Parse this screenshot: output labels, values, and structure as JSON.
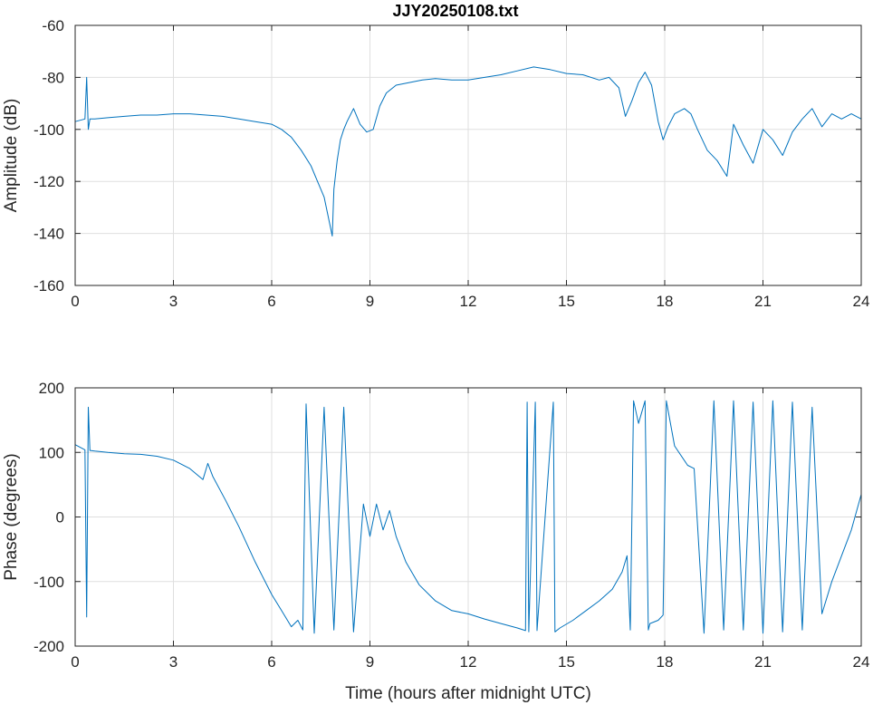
{
  "title": "JJY20250108.txt",
  "colors": {
    "series": "#0072bd",
    "axis": "#262626",
    "grid": "#dfdfdf"
  },
  "chart_data": [
    {
      "type": "line",
      "title": "JJY20250108.txt",
      "xlabel": "",
      "ylabel": "Amplitude (dB)",
      "xlim": [
        0,
        24
      ],
      "ylim": [
        -160,
        -60
      ],
      "xticks": [
        0,
        3,
        6,
        9,
        12,
        15,
        18,
        21,
        24
      ],
      "yticks": [
        -160,
        -140,
        -120,
        -100,
        -80,
        -60
      ],
      "xtick_labels": [
        "0",
        "3",
        "6",
        "9",
        "12",
        "15",
        "18",
        "21",
        "24"
      ],
      "ytick_labels": [
        "-160",
        "-140",
        "-120",
        "-100",
        "-80",
        "-60"
      ],
      "grid": true,
      "series": [
        {
          "x": [
            0,
            0.3,
            0.35,
            0.4,
            0.45,
            0.6,
            1,
            1.5,
            2,
            2.5,
            3,
            3.5,
            4,
            4.5,
            5,
            5.5,
            6,
            6.3,
            6.6,
            6.9,
            7.2,
            7.4,
            7.6,
            7.7,
            7.8,
            7.85,
            7.9,
            8.0,
            8.1,
            8.2,
            8.3,
            8.5,
            8.7,
            8.9,
            9.1,
            9.3,
            9.5,
            9.8,
            10.2,
            10.6,
            11,
            11.5,
            12,
            12.5,
            13,
            13.5,
            14,
            14.5,
            15,
            15.5,
            16,
            16.3,
            16.6,
            16.8,
            17.0,
            17.2,
            17.4,
            17.6,
            17.8,
            17.95,
            18.1,
            18.3,
            18.6,
            18.8,
            19,
            19.3,
            19.6,
            19.9,
            20.1,
            20.4,
            20.7,
            21,
            21.3,
            21.6,
            21.9,
            22.2,
            22.5,
            22.8,
            23.1,
            23.4,
            23.7,
            24
          ],
          "values": [
            -97,
            -96,
            -80,
            -100,
            -96,
            -96,
            -95.5,
            -95,
            -94.5,
            -94.5,
            -94,
            -94,
            -94.5,
            -95,
            -96,
            -97,
            -98,
            -100,
            -103,
            -108,
            -114,
            -120,
            -126,
            -132,
            -138,
            -141,
            -123,
            -112,
            -104,
            -100,
            -97,
            -92,
            -98,
            -101,
            -100,
            -91,
            -86,
            -83,
            -82,
            -81,
            -80.5,
            -81,
            -81,
            -80,
            -79,
            -77.5,
            -76,
            -77,
            -78.5,
            -79,
            -81,
            -80,
            -84,
            -95,
            -89,
            -82,
            -78,
            -83,
            -97,
            -104,
            -99,
            -94,
            -92,
            -94,
            -100,
            -108,
            -112,
            -118,
            -98,
            -106,
            -113,
            -100,
            -104,
            -110,
            -101,
            -96,
            -92,
            -99,
            -94,
            -96,
            -94,
            -96
          ]
        }
      ]
    },
    {
      "type": "line",
      "title": "",
      "xlabel": "Time (hours after midnight UTC)",
      "ylabel": "Phase (degrees)",
      "xlim": [
        0,
        24
      ],
      "ylim": [
        -200,
        200
      ],
      "xticks": [
        0,
        3,
        6,
        9,
        12,
        15,
        18,
        21,
        24
      ],
      "yticks": [
        -200,
        -100,
        0,
        100,
        200
      ],
      "xtick_labels": [
        "0",
        "3",
        "6",
        "9",
        "12",
        "15",
        "18",
        "21",
        "24"
      ],
      "ytick_labels": [
        "-200",
        "-100",
        "0",
        "100",
        "200"
      ],
      "grid": true,
      "series": [
        {
          "x": [
            0,
            0.3,
            0.35,
            0.4,
            0.45,
            0.6,
            1,
            1.5,
            2,
            2.5,
            3,
            3.5,
            3.9,
            4.05,
            4.2,
            4.6,
            5,
            5.5,
            6,
            6.3,
            6.6,
            6.8,
            6.95,
            7.05,
            7.3,
            7.6,
            7.9,
            8.2,
            8.5,
            8.8,
            9.0,
            9.2,
            9.4,
            9.6,
            9.8,
            10.1,
            10.5,
            11,
            11.5,
            12,
            12.5,
            13,
            13.5,
            13.75,
            13.8,
            13.85,
            14.05,
            14.1,
            14.6,
            14.65,
            14.8,
            15.2,
            15.6,
            16,
            16.4,
            16.7,
            16.85,
            16.95,
            17.05,
            17.2,
            17.4,
            17.5,
            17.55,
            17.8,
            17.95,
            18.05,
            18.3,
            18.7,
            18.9,
            19.2,
            19.5,
            19.8,
            20.1,
            20.4,
            20.7,
            21,
            21.3,
            21.6,
            21.9,
            22.2,
            22.5,
            22.8,
            23.1,
            23.4,
            23.7,
            24
          ],
          "values": [
            112,
            104,
            -155,
            170,
            103,
            102,
            100,
            98,
            97,
            94,
            88,
            75,
            58,
            83,
            63,
            25,
            -15,
            -70,
            -120,
            -145,
            -170,
            -160,
            -175,
            175,
            -180,
            170,
            -175,
            170,
            -178,
            20,
            -30,
            20,
            -20,
            10,
            -30,
            -70,
            -105,
            -130,
            -145,
            -150,
            -158,
            -165,
            -172,
            -176,
            178,
            -178,
            178,
            -176,
            178,
            -178,
            -172,
            -160,
            -145,
            -130,
            -112,
            -85,
            -60,
            -175,
            180,
            145,
            180,
            -175,
            -165,
            -160,
            -152,
            180,
            110,
            80,
            75,
            -180,
            180,
            -175,
            180,
            -175,
            178,
            -180,
            180,
            -178,
            178,
            -175,
            170,
            -150,
            -100,
            -60,
            -20,
            35
          ]
        }
      ]
    }
  ]
}
